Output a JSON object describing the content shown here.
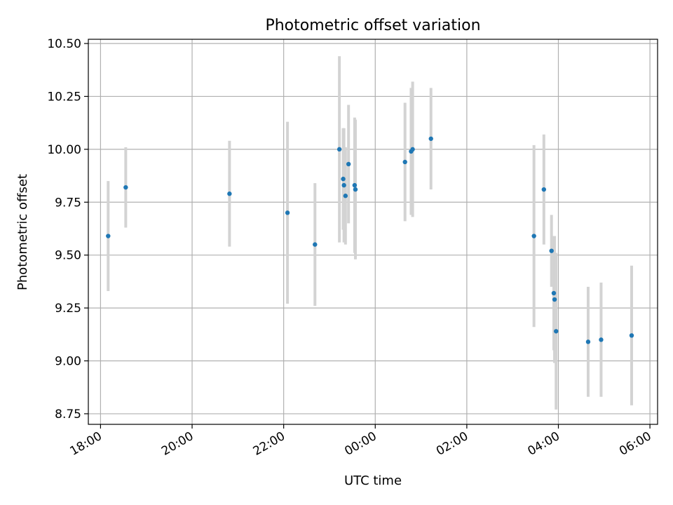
{
  "chart_data": {
    "type": "scatter",
    "title": "Photometric offset variation",
    "xlabel": "UTC time",
    "ylabel": "Photometric offset",
    "x_axis_type": "time",
    "x_ticks": [
      "18:00",
      "20:00",
      "22:00",
      "00:00",
      "02:00",
      "04:00",
      "06:00"
    ],
    "y_ticks": [
      "8.75",
      "9.00",
      "9.25",
      "9.50",
      "9.75",
      "10.00",
      "10.25",
      "10.50"
    ],
    "xlim": [
      "17:44",
      "06:10"
    ],
    "ylim": [
      8.7,
      10.52
    ],
    "grid": true,
    "legend": "none",
    "point_color": "#1f77b4",
    "errorbar_color": "#d3d3d3",
    "points": [
      {
        "time": "18:10",
        "y": 9.59,
        "err": 0.26
      },
      {
        "time": "18:33",
        "y": 9.82,
        "err": 0.19
      },
      {
        "time": "20:49",
        "y": 9.79,
        "err": 0.25
      },
      {
        "time": "22:05",
        "y": 9.7,
        "err": 0.43
      },
      {
        "time": "22:41",
        "y": 9.55,
        "err": 0.29
      },
      {
        "time": "23:13",
        "y": 10.0,
        "err": 0.44
      },
      {
        "time": "23:18",
        "y": 9.86,
        "err": 0.24
      },
      {
        "time": "23:19",
        "y": 9.83,
        "err": 0.27
      },
      {
        "time": "23:21",
        "y": 9.78,
        "err": 0.23
      },
      {
        "time": "23:25",
        "y": 9.93,
        "err": 0.28
      },
      {
        "time": "23:33",
        "y": 9.83,
        "err": 0.32
      },
      {
        "time": "23:34",
        "y": 9.81,
        "err": 0.33
      },
      {
        "time": "00:39",
        "y": 9.94,
        "err": 0.28
      },
      {
        "time": "00:47",
        "y": 9.99,
        "err": 0.3
      },
      {
        "time": "00:49",
        "y": 10.0,
        "err": 0.32
      },
      {
        "time": "01:13",
        "y": 10.05,
        "err": 0.24
      },
      {
        "time": "03:28",
        "y": 9.59,
        "err": 0.43
      },
      {
        "time": "03:41",
        "y": 9.81,
        "err": 0.26
      },
      {
        "time": "03:51",
        "y": 9.52,
        "err": 0.17
      },
      {
        "time": "03:54",
        "y": 9.32,
        "err": 0.27
      },
      {
        "time": "03:55",
        "y": 9.29,
        "err": 0.3
      },
      {
        "time": "03:57",
        "y": 9.14,
        "err": 0.37
      },
      {
        "time": "04:39",
        "y": 9.09,
        "err": 0.26
      },
      {
        "time": "04:56",
        "y": 9.1,
        "err": 0.27
      },
      {
        "time": "05:36",
        "y": 9.12,
        "err": 0.33
      }
    ]
  }
}
